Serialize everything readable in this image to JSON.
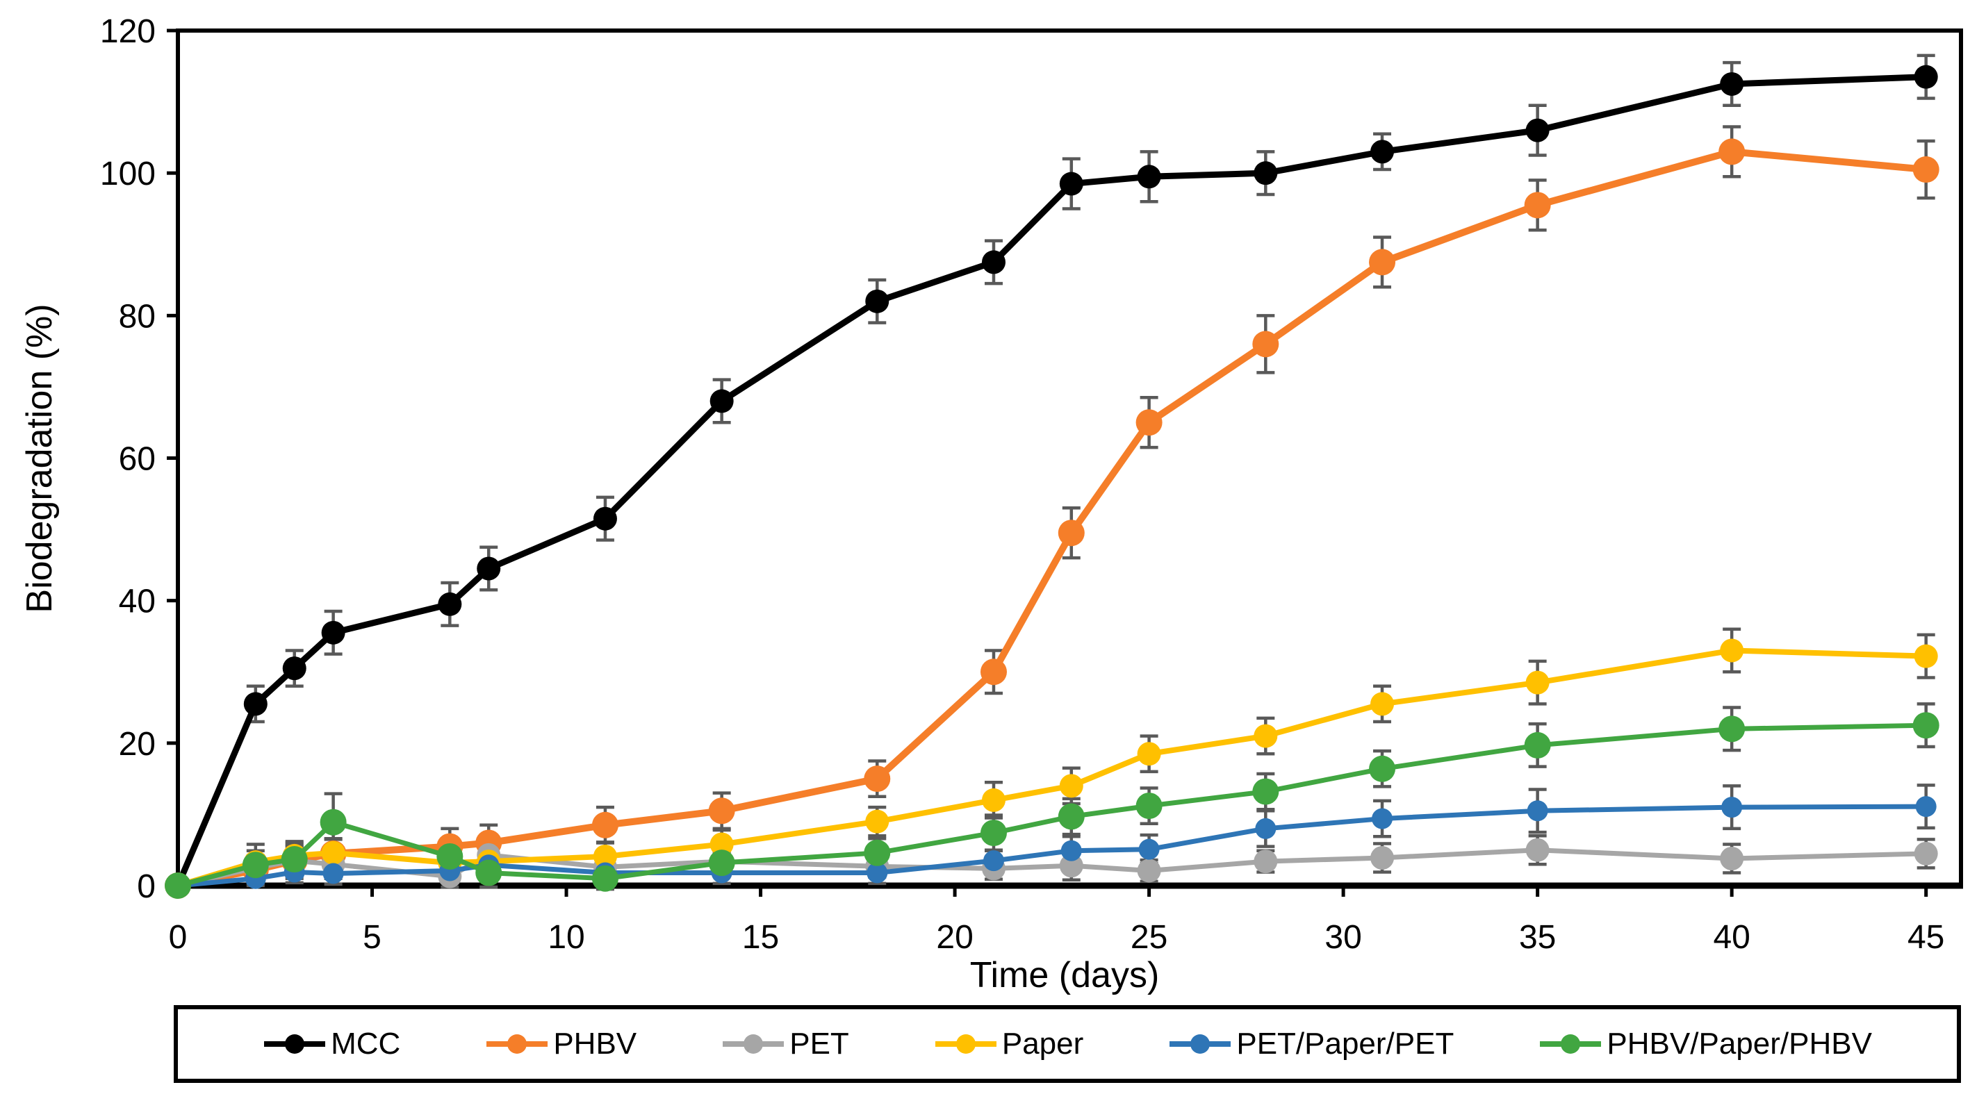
{
  "chart_data": {
    "type": "line",
    "title": "",
    "xlabel": "Time (days)",
    "ylabel": "Biodegradation (%)",
    "xlim": [
      0,
      45
    ],
    "ylim": [
      0,
      120
    ],
    "xticks": [
      0,
      5,
      10,
      15,
      20,
      25,
      30,
      35,
      40,
      45
    ],
    "yticks": [
      0,
      20,
      40,
      60,
      80,
      100,
      120
    ],
    "grid": "off",
    "legend_position": "bottom",
    "error_bar_color": "#595959",
    "axis_color": "#000000",
    "x": [
      0,
      2,
      3,
      4,
      7,
      8,
      11,
      14,
      18,
      21,
      23,
      25,
      28,
      31,
      35,
      40,
      45
    ],
    "series": [
      {
        "name": "MCC",
        "color": "#000000",
        "line_width": 9,
        "marker_radius": 17,
        "values": [
          0,
          25.5,
          30.5,
          35.5,
          39.5,
          44.5,
          51.5,
          68,
          82,
          87.5,
          98.5,
          99.5,
          100,
          103,
          106,
          112.5,
          113.5
        ],
        "errors": [
          0,
          2.5,
          2.5,
          3,
          3,
          3,
          3,
          3,
          3,
          3,
          3.5,
          3.5,
          3,
          2.5,
          3.5,
          3,
          3
        ]
      },
      {
        "name": "PHBV",
        "color": "#F57E29",
        "line_width": 10,
        "marker_radius": 19,
        "values": [
          0,
          2.2,
          3.5,
          4.5,
          5.5,
          6,
          8.5,
          10.5,
          15,
          30,
          49.5,
          65,
          76,
          87.5,
          95.5,
          103,
          100.5
        ],
        "errors": [
          0,
          2,
          2,
          2,
          2.5,
          2.5,
          2.5,
          2.5,
          2.5,
          3,
          3.5,
          3.5,
          4,
          3.5,
          3.5,
          3.5,
          4
        ]
      },
      {
        "name": "PET",
        "color": "#A6A6A6",
        "line_width": 7,
        "marker_radius": 17,
        "values": [
          0,
          2.5,
          3.5,
          3,
          1.3,
          4.3,
          2.6,
          3.4,
          2.7,
          2.4,
          2.8,
          2.1,
          3.4,
          3.9,
          5,
          3.8,
          4.5
        ],
        "errors": [
          0,
          1.5,
          2.5,
          2,
          1.5,
          2,
          1.5,
          1.5,
          1.5,
          1.5,
          2,
          1.5,
          1.5,
          2,
          2,
          2,
          2
        ]
      },
      {
        "name": "Paper",
        "color": "#FFC000",
        "line_width": 8,
        "marker_radius": 17,
        "values": [
          0,
          3.3,
          4.2,
          4.6,
          3.2,
          3.4,
          4.1,
          5.8,
          9,
          12,
          14,
          18.5,
          21,
          25.5,
          28.5,
          33,
          32.2
        ],
        "errors": [
          0,
          2.5,
          2,
          2,
          1.5,
          1.5,
          2,
          2,
          2,
          2.5,
          2.5,
          2.5,
          2.5,
          2.5,
          3,
          3,
          3
        ]
      },
      {
        "name": "PET/Paper/PET",
        "color": "#2E75B6",
        "line_width": 7,
        "marker_radius": 15,
        "values": [
          0,
          1,
          1.9,
          1.7,
          2.1,
          2.9,
          1.8,
          1.8,
          1.8,
          3.5,
          4.9,
          5.1,
          8,
          9.4,
          10.5,
          11,
          11.1
        ],
        "errors": [
          0,
          1,
          1.5,
          1.5,
          1.5,
          1.5,
          1.5,
          1.5,
          1.5,
          1.5,
          2,
          2,
          2.5,
          2.5,
          3,
          3,
          3
        ]
      },
      {
        "name": "PHBV/Paper/PHBV",
        "color": "#41A641",
        "line_width": 7,
        "marker_radius": 19,
        "values": [
          0,
          2.9,
          3.7,
          8.9,
          4.1,
          1.8,
          1,
          3.2,
          4.6,
          7.4,
          9.7,
          11.2,
          13.2,
          16.4,
          19.7,
          22,
          22.5
        ],
        "errors": [
          0,
          2,
          2,
          4,
          2.5,
          2,
          1.5,
          1.5,
          2,
          2.5,
          2.5,
          2.5,
          2.5,
          2.5,
          3,
          3,
          3
        ]
      }
    ]
  }
}
